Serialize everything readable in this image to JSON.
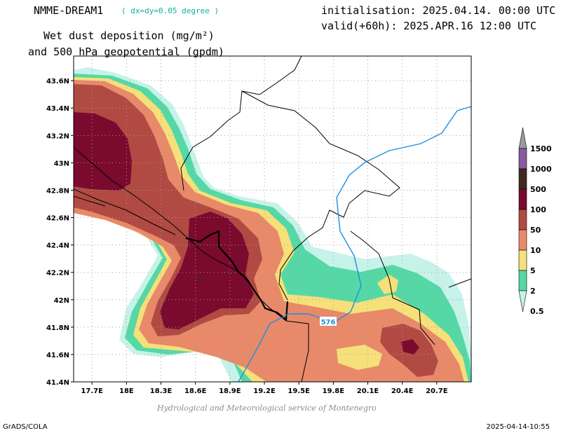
{
  "header": {
    "model": "NMME-DREAM1",
    "resolution": "( dx=dy=0.05 degree )",
    "title_line1": "Wet dust deposition (mg/m²)",
    "title_line2": "and 500 hPa geopotential (gpdm)",
    "initialisation": "initialisation: 2025.04.14. 00:00 UTC",
    "valid": "valid(+60h): 2025.APR.16 12:00 UTC"
  },
  "map": {
    "lat_labels": [
      "43.6N",
      "43.4N",
      "43.2N",
      "43N",
      "42.8N",
      "42.6N",
      "42.4N",
      "42.2N",
      "42N",
      "41.8N",
      "41.6N",
      "41.4N"
    ],
    "lat_values": [
      43.6,
      43.4,
      43.2,
      43.0,
      42.8,
      42.6,
      42.4,
      42.2,
      42.0,
      41.8,
      41.6,
      41.4
    ],
    "lon_labels": [
      "17.7E",
      "18E",
      "18.3E",
      "18.6E",
      "18.9E",
      "19.2E",
      "19.5E",
      "19.8E",
      "20.1E",
      "20.4E",
      "20.7E"
    ],
    "lon_values": [
      17.7,
      18.0,
      18.3,
      18.6,
      18.9,
      19.2,
      19.5,
      19.8,
      20.1,
      20.4,
      20.7
    ],
    "lon_range": [
      17.54,
      21.0
    ],
    "lat_range": [
      41.4,
      43.78
    ],
    "geopotential_contour_label": "576",
    "geopotential_color": "#1e90e0"
  },
  "colorbar": {
    "levels": [
      {
        "label": "1500",
        "color": "#9a9a9a"
      },
      {
        "label": "1000",
        "color": "#8a5a9e"
      },
      {
        "label": "500",
        "color": "#3e2a1e"
      },
      {
        "label": "100",
        "color": "#7a0a2e"
      },
      {
        "label": "50",
        "color": "#b04a42"
      },
      {
        "label": "10",
        "color": "#e8896a"
      },
      {
        "label": "5",
        "color": "#f5e07a"
      },
      {
        "label": "2",
        "color": "#55d8a6"
      },
      {
        "label": "0.5",
        "color": "#c6f2ea"
      }
    ]
  },
  "footer": {
    "credit": "Hydrological and Meteorological service of Montenegro",
    "software": "GrADS/COLA",
    "timestamp": "2025-04-14-10:55"
  }
}
